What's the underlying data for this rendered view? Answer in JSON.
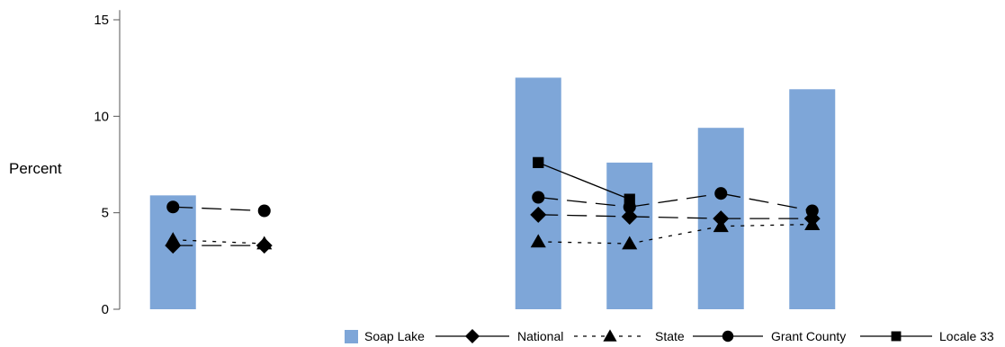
{
  "chart_data": {
    "type": "bar",
    "title": "",
    "xlabel": "",
    "ylabel": "Percent",
    "ylim": [
      0,
      15.5
    ],
    "yticks": [
      0,
      5,
      10,
      15
    ],
    "grid": false,
    "legend_position": "bottom-right",
    "categories": [
      "",
      "",
      "",
      "",
      "",
      "",
      "",
      "",
      ""
    ],
    "series": [
      {
        "name": "Soap Lake",
        "kind": "bar",
        "color": "#7ea6d8",
        "values": [
          5.9,
          null,
          null,
          null,
          12.0,
          7.6,
          9.4,
          11.4,
          null
        ]
      },
      {
        "name": "National",
        "kind": "line",
        "marker": "diamond",
        "dash": "long",
        "values": [
          3.3,
          3.3,
          null,
          null,
          4.9,
          4.8,
          4.7,
          4.7,
          null
        ]
      },
      {
        "name": "State",
        "kind": "line",
        "marker": "triangle",
        "dash": "short",
        "values": [
          3.6,
          3.4,
          null,
          null,
          3.5,
          3.4,
          4.3,
          4.4,
          null
        ]
      },
      {
        "name": "Grant County",
        "kind": "line",
        "marker": "circle",
        "dash": "long",
        "values": [
          5.3,
          5.1,
          null,
          null,
          5.8,
          5.3,
          6.0,
          5.1,
          null
        ]
      },
      {
        "name": "Locale 33",
        "kind": "line",
        "marker": "square",
        "dash": "solid",
        "values": [
          null,
          null,
          null,
          null,
          7.6,
          5.7,
          null,
          null,
          null
        ]
      }
    ]
  }
}
